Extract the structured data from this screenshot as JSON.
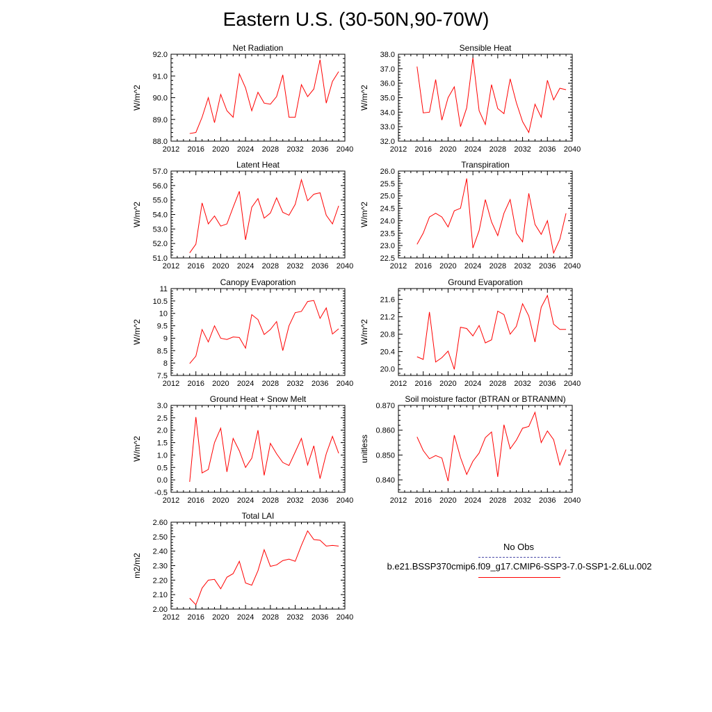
{
  "title": "Eastern U.S. (30-50N,90-70W)",
  "colors": {
    "model_line": "#ff0000",
    "obs_line": "#4a4aa8"
  },
  "legend": {
    "obs_label": "No Obs",
    "model_label": "b.e21.BSSP370cmip6.f09_g17.CMIP6-SSP3-7.0-SSP1-2.6Lu.002"
  },
  "chart_data": [
    {
      "type": "line",
      "title": "Net Radiation",
      "ylabel": "W/m^2",
      "xlim": [
        2012,
        2040
      ],
      "ylim": [
        88.0,
        92.0
      ],
      "xticks": [
        2012,
        2016,
        2020,
        2024,
        2028,
        2032,
        2036,
        2040
      ],
      "yticks": [
        88.0,
        89.0,
        90.0,
        91.0,
        92.0
      ],
      "yminor": 0.2,
      "tick_decimals": 1,
      "x": [
        2015,
        2016,
        2017,
        2018,
        2019,
        2020,
        2021,
        2022,
        2023,
        2024,
        2025,
        2026,
        2027,
        2028,
        2029,
        2030,
        2031,
        2032,
        2033,
        2034,
        2035,
        2036,
        2037,
        2038,
        2039
      ],
      "values": [
        88.35,
        88.4,
        89.1,
        90.0,
        88.85,
        90.15,
        89.4,
        89.1,
        91.1,
        90.45,
        89.4,
        90.25,
        89.75,
        89.7,
        90.05,
        91.05,
        89.1,
        89.1,
        90.6,
        90.05,
        90.4,
        91.75,
        89.75,
        90.75,
        91.2
      ]
    },
    {
      "type": "line",
      "title": "Sensible Heat",
      "ylabel": "W/m^2",
      "xlim": [
        2012,
        2040
      ],
      "ylim": [
        32.0,
        38.0
      ],
      "xticks": [
        2012,
        2016,
        2020,
        2024,
        2028,
        2032,
        2036,
        2040
      ],
      "yticks": [
        32.0,
        33.0,
        34.0,
        35.0,
        36.0,
        37.0,
        38.0
      ],
      "yminor": 0.2,
      "tick_decimals": 1,
      "x": [
        2015,
        2016,
        2017,
        2018,
        2019,
        2020,
        2021,
        2022,
        2023,
        2024,
        2025,
        2026,
        2027,
        2028,
        2029,
        2030,
        2031,
        2032,
        2033,
        2034,
        2035,
        2036,
        2037,
        2038,
        2039
      ],
      "values": [
        37.15,
        33.95,
        34.0,
        36.25,
        33.45,
        35.0,
        35.75,
        33.0,
        34.3,
        37.75,
        34.1,
        33.15,
        35.9,
        34.25,
        33.9,
        36.3,
        34.65,
        33.35,
        32.6,
        34.55,
        33.65,
        36.2,
        34.85,
        35.65,
        35.55
      ]
    },
    {
      "type": "line",
      "title": "Latent Heat",
      "ylabel": "W/m^2",
      "xlim": [
        2012,
        2040
      ],
      "ylim": [
        51.0,
        57.0
      ],
      "xticks": [
        2012,
        2016,
        2020,
        2024,
        2028,
        2032,
        2036,
        2040
      ],
      "yticks": [
        51.0,
        52.0,
        53.0,
        54.0,
        55.0,
        56.0,
        57.0
      ],
      "yminor": 0.2,
      "tick_decimals": 1,
      "x": [
        2015,
        2016,
        2017,
        2018,
        2019,
        2020,
        2021,
        2022,
        2023,
        2024,
        2025,
        2026,
        2027,
        2028,
        2029,
        2030,
        2031,
        2032,
        2033,
        2034,
        2035,
        2036,
        2037,
        2038,
        2039
      ],
      "values": [
        51.35,
        51.95,
        54.8,
        53.35,
        53.9,
        53.2,
        53.35,
        54.5,
        55.6,
        52.25,
        54.5,
        55.1,
        53.75,
        54.1,
        55.15,
        54.15,
        53.95,
        54.7,
        56.4,
        54.95,
        55.4,
        55.5,
        53.95,
        53.35,
        54.6
      ]
    },
    {
      "type": "line",
      "title": "Transpiration",
      "ylabel": "W/m^2",
      "xlim": [
        2012,
        2040
      ],
      "ylim": [
        22.5,
        26.0
      ],
      "xticks": [
        2012,
        2016,
        2020,
        2024,
        2028,
        2032,
        2036,
        2040
      ],
      "yticks": [
        22.5,
        23.0,
        23.5,
        24.0,
        24.5,
        25.0,
        25.5,
        26.0
      ],
      "yminor": 0.1,
      "tick_decimals": 1,
      "x": [
        2015,
        2016,
        2017,
        2018,
        2019,
        2020,
        2021,
        2022,
        2023,
        2024,
        2025,
        2026,
        2027,
        2028,
        2029,
        2030,
        2031,
        2032,
        2033,
        2034,
        2035,
        2036,
        2037,
        2038,
        2039
      ],
      "values": [
        23.05,
        23.5,
        24.15,
        24.3,
        24.15,
        23.75,
        24.4,
        24.5,
        25.7,
        22.9,
        23.6,
        24.85,
        23.95,
        23.4,
        24.3,
        24.85,
        23.5,
        23.15,
        25.1,
        23.85,
        23.45,
        24.0,
        22.7,
        23.25,
        24.3
      ]
    },
    {
      "type": "line",
      "title": "Canopy Evaporation",
      "ylabel": "W/m^2",
      "xlim": [
        2012,
        2040
      ],
      "ylim": [
        7.5,
        11.0
      ],
      "xticks": [
        2012,
        2016,
        2020,
        2024,
        2028,
        2032,
        2036,
        2040
      ],
      "yticks": [
        7.5,
        8.0,
        8.5,
        9.0,
        9.5,
        10.0,
        10.5,
        11.0
      ],
      "yminor": 0.1,
      "tick_decimals": -1,
      "x": [
        2015,
        2016,
        2017,
        2018,
        2019,
        2020,
        2021,
        2022,
        2023,
        2024,
        2025,
        2026,
        2027,
        2028,
        2029,
        2030,
        2031,
        2032,
        2033,
        2034,
        2035,
        2036,
        2037,
        2038,
        2039
      ],
      "values": [
        7.98,
        8.28,
        9.35,
        8.85,
        9.5,
        9.0,
        8.95,
        9.05,
        9.03,
        8.6,
        9.95,
        9.75,
        9.15,
        9.35,
        9.67,
        8.5,
        9.5,
        10.03,
        10.08,
        10.48,
        10.52,
        9.8,
        10.22,
        9.17,
        9.38
      ]
    },
    {
      "type": "line",
      "title": "Ground Evaporation",
      "ylabel": "W/m^2",
      "xlim": [
        2012,
        2040
      ],
      "ylim": [
        19.85,
        21.85
      ],
      "xticks": [
        2012,
        2016,
        2020,
        2024,
        2028,
        2032,
        2036,
        2040
      ],
      "yticks": [
        20.0,
        20.4,
        20.8,
        21.2,
        21.6
      ],
      "yminor": 0.1,
      "tick_decimals": 1,
      "x": [
        2015,
        2016,
        2017,
        2018,
        2019,
        2020,
        2021,
        2022,
        2023,
        2024,
        2025,
        2026,
        2027,
        2028,
        2029,
        2030,
        2031,
        2032,
        2033,
        2034,
        2035,
        2036,
        2037,
        2038,
        2039
      ],
      "values": [
        20.28,
        20.22,
        21.31,
        20.16,
        20.26,
        20.41,
        19.99,
        20.96,
        20.93,
        20.76,
        21.0,
        20.6,
        20.67,
        21.33,
        21.25,
        20.8,
        20.98,
        21.5,
        21.22,
        20.62,
        21.42,
        21.69,
        21.03,
        20.91,
        20.91
      ]
    },
    {
      "type": "line",
      "title": "Ground Heat + Snow Melt",
      "ylabel": "W/m^2",
      "xlim": [
        2012,
        2040
      ],
      "ylim": [
        -0.5,
        3.0
      ],
      "xticks": [
        2012,
        2016,
        2020,
        2024,
        2028,
        2032,
        2036,
        2040
      ],
      "yticks": [
        -0.5,
        0.0,
        0.5,
        1.0,
        1.5,
        2.0,
        2.5,
        3.0
      ],
      "yminor": 0.1,
      "tick_decimals": 1,
      "x": [
        2015,
        2016,
        2017,
        2018,
        2019,
        2020,
        2021,
        2022,
        2023,
        2024,
        2025,
        2026,
        2027,
        2028,
        2029,
        2030,
        2031,
        2032,
        2033,
        2034,
        2035,
        2036,
        2037,
        2038,
        2039
      ],
      "values": [
        -0.08,
        2.53,
        0.28,
        0.42,
        1.5,
        2.08,
        0.32,
        1.67,
        1.17,
        0.5,
        0.87,
        2.0,
        0.18,
        1.47,
        1.05,
        0.7,
        0.58,
        1.12,
        1.67,
        0.6,
        1.37,
        0.05,
        1.05,
        1.75,
        1.07
      ]
    },
    {
      "type": "line",
      "title": "Soil moisture factor (BTRAN or BTRANMN)",
      "ylabel": "unitless",
      "xlim": [
        2012,
        2040
      ],
      "ylim": [
        0.835,
        0.87
      ],
      "xticks": [
        2012,
        2016,
        2020,
        2024,
        2028,
        2032,
        2036,
        2040
      ],
      "yticks": [
        0.84,
        0.85,
        0.86,
        0.87
      ],
      "yminor": 0.002,
      "tick_decimals": 3,
      "x": [
        2015,
        2016,
        2017,
        2018,
        2019,
        2020,
        2021,
        2022,
        2023,
        2024,
        2025,
        2026,
        2027,
        2028,
        2029,
        2030,
        2031,
        2032,
        2033,
        2034,
        2035,
        2036,
        2037,
        2038,
        2039
      ],
      "values": [
        0.8573,
        0.8518,
        0.8485,
        0.8498,
        0.8488,
        0.8395,
        0.858,
        0.849,
        0.8422,
        0.8475,
        0.8508,
        0.857,
        0.8593,
        0.8412,
        0.8622,
        0.8525,
        0.856,
        0.8608,
        0.8615,
        0.8672,
        0.855,
        0.8597,
        0.8562,
        0.846,
        0.8522
      ]
    },
    {
      "type": "line",
      "title": "Total LAI",
      "ylabel": "m2/m2",
      "xlim": [
        2012,
        2040
      ],
      "ylim": [
        2.0,
        2.6
      ],
      "xticks": [
        2012,
        2016,
        2020,
        2024,
        2028,
        2032,
        2036,
        2040
      ],
      "yticks": [
        2.0,
        2.1,
        2.2,
        2.3,
        2.4,
        2.5,
        2.6
      ],
      "yminor": 0.02,
      "tick_decimals": 2,
      "x": [
        2015,
        2016,
        2017,
        2018,
        2019,
        2020,
        2021,
        2022,
        2023,
        2024,
        2025,
        2026,
        2027,
        2028,
        2029,
        2030,
        2031,
        2032,
        2033,
        2034,
        2035,
        2036,
        2037,
        2038,
        2039
      ],
      "values": [
        2.075,
        2.03,
        2.145,
        2.2,
        2.205,
        2.14,
        2.22,
        2.245,
        2.33,
        2.18,
        2.165,
        2.265,
        2.41,
        2.295,
        2.305,
        2.335,
        2.345,
        2.33,
        2.44,
        2.54,
        2.48,
        2.475,
        2.435,
        2.44,
        2.435
      ]
    }
  ]
}
